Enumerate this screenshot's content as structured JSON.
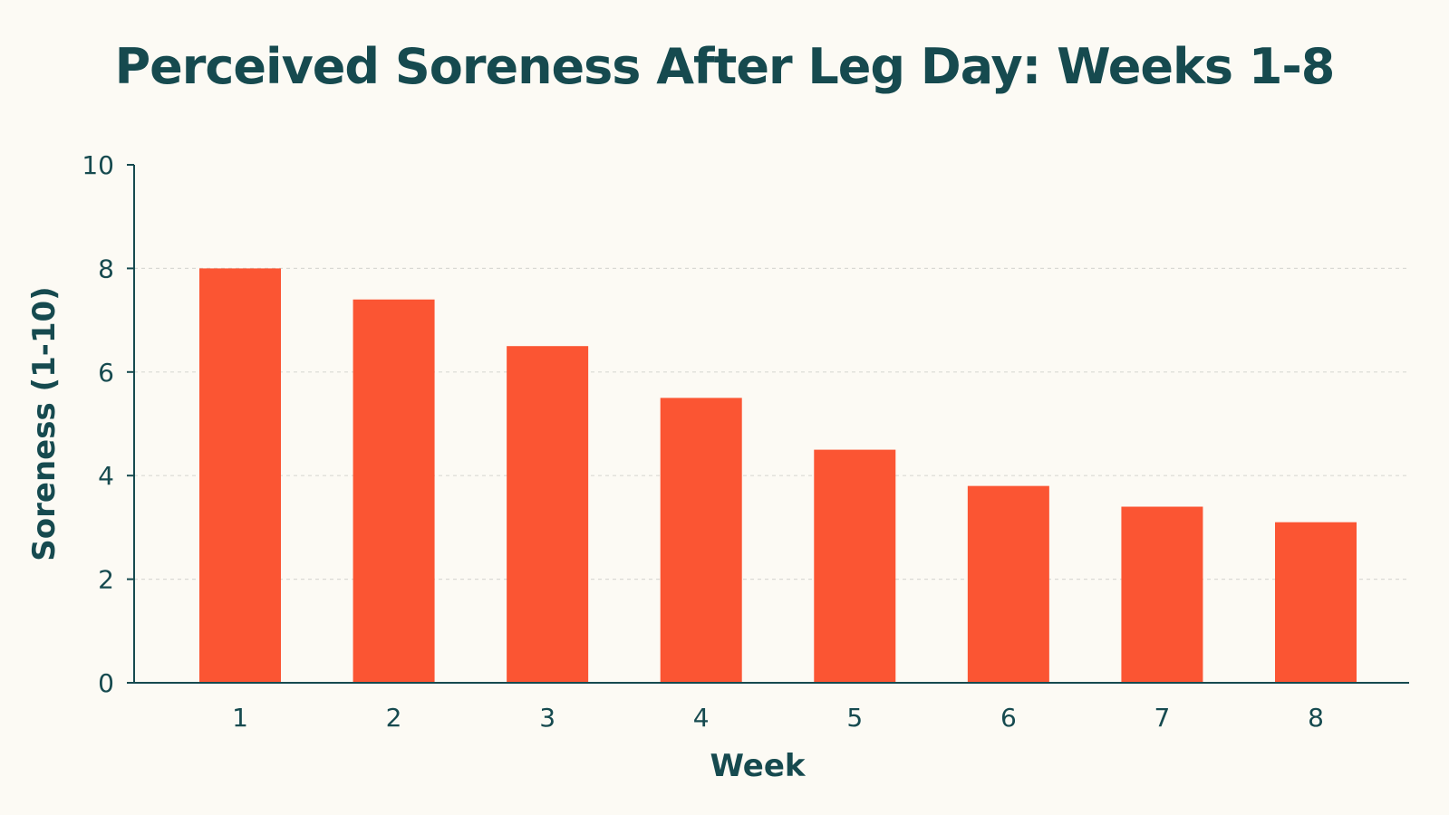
{
  "chart_data": {
    "type": "bar",
    "title": "Perceived Soreness After Leg Day: Weeks 1-8",
    "xlabel": "Week",
    "ylabel": "Soreness (1-10)",
    "categories": [
      "1",
      "2",
      "3",
      "4",
      "5",
      "6",
      "7",
      "8"
    ],
    "values": [
      8.0,
      7.4,
      6.5,
      5.5,
      4.5,
      3.8,
      3.4,
      3.1
    ],
    "ylim": [
      0,
      10
    ],
    "yticks": [
      0,
      2,
      4,
      6,
      8,
      10
    ],
    "grid": true,
    "legend": "none",
    "colors": {
      "bar": "#fb5533",
      "axis": "#164a4f",
      "grid": "#d9d9d4",
      "background": "#fcfaf4"
    }
  }
}
